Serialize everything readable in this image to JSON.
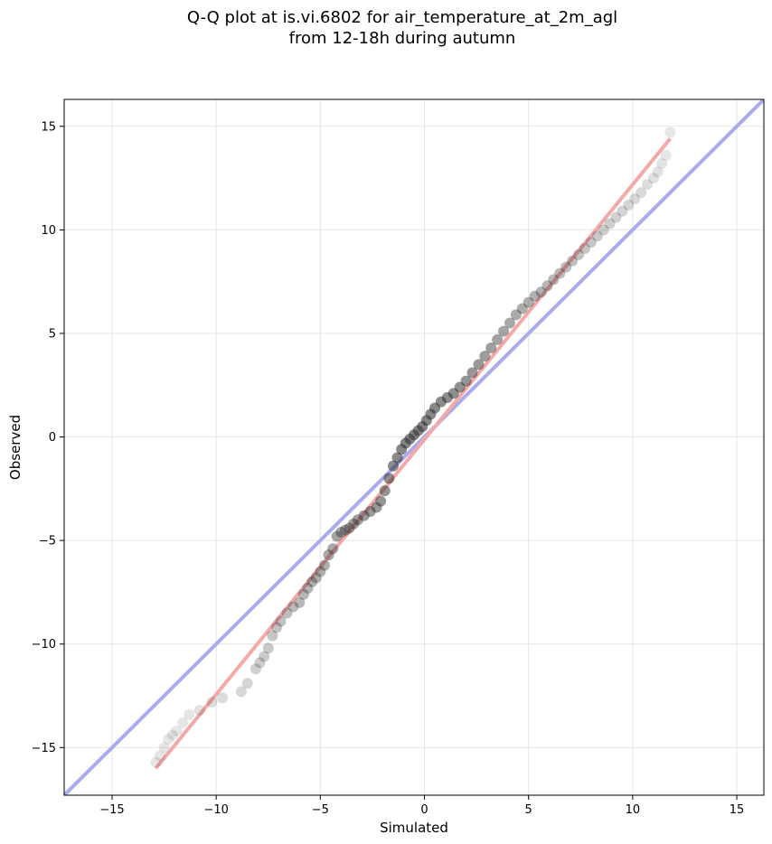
{
  "chart_data": {
    "type": "scatter",
    "title_line1": "Q-Q plot at is.vi.6802 for air_temperature_at_2m_agl",
    "title_line2": "from 12-18h during autumn",
    "xlabel": "Simulated",
    "ylabel": "Observed",
    "xlim": [
      -17.3,
      16.3
    ],
    "ylim": [
      -17.3,
      16.3
    ],
    "xticks": [
      -15,
      -10,
      -5,
      0,
      5,
      10,
      15
    ],
    "yticks": [
      -15,
      -10,
      -5,
      0,
      5,
      10,
      15
    ],
    "xtick_labels": [
      "−15",
      "−10",
      "−5",
      "0",
      "5",
      "10",
      "15"
    ],
    "ytick_labels": [
      "−15",
      "−10",
      "−5",
      "0",
      "5",
      "10",
      "15"
    ],
    "grid": true,
    "identity_line": {
      "color": "#aaaaee",
      "x": [
        -17.3,
        16.3
      ],
      "y": [
        -17.3,
        16.3
      ]
    },
    "fit_line": {
      "color": "#f4a8a8",
      "x": [
        -12.9,
        11.8
      ],
      "y": [
        -16.0,
        14.4
      ]
    },
    "marker_color": "#333333",
    "points": {
      "x": [
        -12.9,
        -12.7,
        -12.5,
        -12.3,
        -12.1,
        -11.9,
        -11.6,
        -11.3,
        -10.8,
        -10.2,
        -9.7,
        -8.8,
        -8.5,
        -8.1,
        -7.9,
        -7.7,
        -7.5,
        -7.3,
        -7.1,
        -6.9,
        -6.6,
        -6.3,
        -6.0,
        -5.8,
        -5.6,
        -5.4,
        -5.2,
        -5.0,
        -4.8,
        -4.6,
        -4.4,
        -4.2,
        -4.0,
        -3.8,
        -3.6,
        -3.4,
        -3.2,
        -2.9,
        -2.6,
        -2.3,
        -2.1,
        -1.9,
        -1.7,
        -1.5,
        -1.3,
        -1.1,
        -0.9,
        -0.7,
        -0.5,
        -0.3,
        -0.1,
        0.1,
        0.3,
        0.5,
        0.8,
        1.1,
        1.4,
        1.7,
        2.0,
        2.3,
        2.6,
        2.9,
        3.2,
        3.5,
        3.8,
        4.1,
        4.4,
        4.7,
        5.0,
        5.3,
        5.6,
        5.9,
        6.2,
        6.5,
        6.8,
        7.1,
        7.4,
        7.7,
        8.0,
        8.3,
        8.6,
        8.9,
        9.2,
        9.5,
        9.8,
        10.1,
        10.4,
        10.7,
        11.0,
        11.2,
        11.4,
        11.6,
        11.8
      ],
      "y": [
        -15.7,
        -15.4,
        -15.0,
        -14.6,
        -14.4,
        -14.2,
        -13.8,
        -13.4,
        -13.2,
        -12.8,
        -12.6,
        -12.3,
        -11.9,
        -11.2,
        -10.9,
        -10.6,
        -10.2,
        -9.6,
        -9.2,
        -8.9,
        -8.5,
        -8.2,
        -8.0,
        -7.6,
        -7.3,
        -7.0,
        -6.8,
        -6.5,
        -6.2,
        -5.7,
        -5.4,
        -4.8,
        -4.6,
        -4.5,
        -4.4,
        -4.2,
        -4.0,
        -3.8,
        -3.6,
        -3.4,
        -3.1,
        -2.6,
        -2.0,
        -1.4,
        -1.0,
        -0.6,
        -0.3,
        -0.1,
        0.1,
        0.3,
        0.5,
        0.8,
        1.1,
        1.4,
        1.7,
        1.9,
        2.1,
        2.4,
        2.7,
        3.1,
        3.5,
        3.9,
        4.3,
        4.7,
        5.1,
        5.5,
        5.9,
        6.2,
        6.5,
        6.8,
        7.0,
        7.3,
        7.6,
        7.9,
        8.2,
        8.5,
        8.8,
        9.1,
        9.4,
        9.7,
        10.0,
        10.3,
        10.6,
        10.9,
        11.2,
        11.5,
        11.8,
        12.2,
        12.5,
        12.8,
        13.2,
        13.6,
        14.7
      ]
    }
  }
}
